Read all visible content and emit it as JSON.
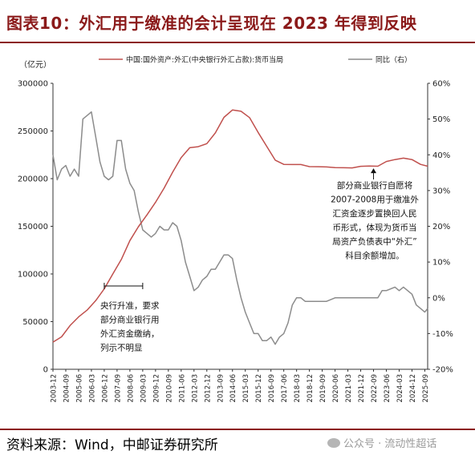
{
  "title": "图表10：外汇用于缴准的会计呈现在 2023 年得到反映",
  "source": "资料来源：Wind，中邮证券研究所",
  "watermark": "公众号 · 流动性超话",
  "chart_data": {
    "type": "line",
    "left_unit": "（亿元）",
    "legend": [
      "中国:国外资产:外汇(中央银行外汇占款):货币当局",
      "同比（右）"
    ],
    "legend_placement": "top",
    "colors": {
      "series1": "#c0504d",
      "series2": "#8c8c8c"
    },
    "x_tick_labels": [
      "2003-12",
      "2004-09",
      "2005-06",
      "2006-03",
      "2006-12",
      "2007-09",
      "2008-06",
      "2009-03",
      "2009-12",
      "2010-09",
      "2011-06",
      "2012-03",
      "2012-12",
      "2013-09",
      "2014-06",
      "2015-03",
      "2015-12",
      "2016-09",
      "2017-06",
      "2018-03",
      "2018-12",
      "2019-09",
      "2020-06",
      "2021-03",
      "2021-12",
      "2022-09",
      "2023-06",
      "2024-03",
      "2024-12",
      "2025-09"
    ],
    "x_range": [
      "2003-12",
      "2025-11"
    ],
    "ylim_left": [
      0,
      300000
    ],
    "y_left_ticks": [
      "0",
      "50000",
      "100000",
      "150000",
      "200000",
      "250000",
      "300000"
    ],
    "ylim_right": [
      -20,
      60
    ],
    "y_right_ticks": [
      "-20%",
      "-10%",
      "0%",
      "10%",
      "20%",
      "30%",
      "40%",
      "50%",
      "60%"
    ],
    "series": [
      {
        "name": "中国:国外资产:外汇(中央银行外汇占款):货币当局",
        "axis": "left",
        "points": [
          [
            "2003-12",
            28500
          ],
          [
            "2004-06",
            34000
          ],
          [
            "2004-12",
            45900
          ],
          [
            "2005-06",
            55000
          ],
          [
            "2005-12",
            62100
          ],
          [
            "2006-06",
            72000
          ],
          [
            "2006-12",
            84400
          ],
          [
            "2007-06",
            100000
          ],
          [
            "2007-12",
            115200
          ],
          [
            "2008-06",
            135000
          ],
          [
            "2008-12",
            149600
          ],
          [
            "2009-06",
            162000
          ],
          [
            "2009-12",
            175100
          ],
          [
            "2010-06",
            190000
          ],
          [
            "2010-12",
            206800
          ],
          [
            "2011-06",
            222000
          ],
          [
            "2011-12",
            232400
          ],
          [
            "2012-06",
            233500
          ],
          [
            "2012-12",
            236700
          ],
          [
            "2013-06",
            248000
          ],
          [
            "2013-12",
            264300
          ],
          [
            "2014-06",
            272000
          ],
          [
            "2014-12",
            270700
          ],
          [
            "2015-06",
            264000
          ],
          [
            "2015-12",
            248500
          ],
          [
            "2016-06",
            234000
          ],
          [
            "2016-12",
            219400
          ],
          [
            "2017-06",
            215000
          ],
          [
            "2017-12",
            214800
          ],
          [
            "2018-06",
            214800
          ],
          [
            "2018-12",
            212600
          ],
          [
            "2019-06",
            212500
          ],
          [
            "2019-12",
            212300
          ],
          [
            "2020-06",
            211500
          ],
          [
            "2020-12",
            211400
          ],
          [
            "2021-06",
            211300
          ],
          [
            "2021-12",
            212900
          ],
          [
            "2022-06",
            213200
          ],
          [
            "2022-12",
            213000
          ],
          [
            "2023-06",
            218000
          ],
          [
            "2023-12",
            220000
          ],
          [
            "2024-06",
            221500
          ],
          [
            "2024-12",
            220000
          ],
          [
            "2025-06",
            215000
          ],
          [
            "2025-11",
            213000
          ]
        ]
      },
      {
        "name": "同比（右）",
        "axis": "right",
        "points": [
          [
            "2003-12",
            40
          ],
          [
            "2004-03",
            33
          ],
          [
            "2004-06",
            36
          ],
          [
            "2004-09",
            37
          ],
          [
            "2004-12",
            34
          ],
          [
            "2005-03",
            36
          ],
          [
            "2005-06",
            34
          ],
          [
            "2005-09",
            50
          ],
          [
            "2005-12",
            51
          ],
          [
            "2006-03",
            52
          ],
          [
            "2006-06",
            45
          ],
          [
            "2006-09",
            38
          ],
          [
            "2006-12",
            34
          ],
          [
            "2007-03",
            33
          ],
          [
            "2007-06",
            34
          ],
          [
            "2007-09",
            44
          ],
          [
            "2007-12",
            44
          ],
          [
            "2008-03",
            36
          ],
          [
            "2008-06",
            32
          ],
          [
            "2008-09",
            30
          ],
          [
            "2008-12",
            24
          ],
          [
            "2009-03",
            19
          ],
          [
            "2009-06",
            18
          ],
          [
            "2009-09",
            17
          ],
          [
            "2009-12",
            18
          ],
          [
            "2010-03",
            20
          ],
          [
            "2010-06",
            19
          ],
          [
            "2010-09",
            19
          ],
          [
            "2010-12",
            21
          ],
          [
            "2011-03",
            20
          ],
          [
            "2011-06",
            16
          ],
          [
            "2011-09",
            10
          ],
          [
            "2011-12",
            6
          ],
          [
            "2012-03",
            2
          ],
          [
            "2012-06",
            3
          ],
          [
            "2012-09",
            5
          ],
          [
            "2012-12",
            6
          ],
          [
            "2013-03",
            8
          ],
          [
            "2013-06",
            8
          ],
          [
            "2013-09",
            10
          ],
          [
            "2013-12",
            12
          ],
          [
            "2014-03",
            12
          ],
          [
            "2014-06",
            11
          ],
          [
            "2014-09",
            5
          ],
          [
            "2014-12",
            0
          ],
          [
            "2015-03",
            -4
          ],
          [
            "2015-06",
            -7
          ],
          [
            "2015-09",
            -10
          ],
          [
            "2015-12",
            -10
          ],
          [
            "2016-03",
            -12
          ],
          [
            "2016-06",
            -12
          ],
          [
            "2016-09",
            -11
          ],
          [
            "2016-12",
            -13
          ],
          [
            "2017-03",
            -11
          ],
          [
            "2017-06",
            -10
          ],
          [
            "2017-09",
            -7
          ],
          [
            "2017-12",
            -2
          ],
          [
            "2018-03",
            0
          ],
          [
            "2018-06",
            0
          ],
          [
            "2018-09",
            -1
          ],
          [
            "2018-12",
            -1
          ],
          [
            "2019-06",
            -1
          ],
          [
            "2019-12",
            -1
          ],
          [
            "2020-06",
            0
          ],
          [
            "2020-12",
            0
          ],
          [
            "2021-06",
            0
          ],
          [
            "2021-12",
            0
          ],
          [
            "2022-06",
            0
          ],
          [
            "2022-12",
            0
          ],
          [
            "2023-03",
            2
          ],
          [
            "2023-06",
            2
          ],
          [
            "2023-12",
            3
          ],
          [
            "2024-03",
            2
          ],
          [
            "2024-06",
            3
          ],
          [
            "2024-09",
            2
          ],
          [
            "2024-12",
            1
          ],
          [
            "2025-03",
            -2
          ],
          [
            "2025-06",
            -3
          ],
          [
            "2025-09",
            -4
          ],
          [
            "2025-11",
            -3
          ]
        ]
      }
    ],
    "annotations": [
      {
        "lines": [
          "部分商业银行自愿将",
          "2007-2008用于缴准外",
          "汇资金逐步置换回人民",
          "币形式，体现为货币当",
          "局资产负债表中“外汇”",
          "科目余额增加。"
        ],
        "arrow_to": [
          "2022-09",
          212500
        ]
      },
      {
        "lines": [
          "央行升准，要求",
          "部分商业银行用",
          "外汇资金缴纳，",
          "列示不明显"
        ],
        "bracket": [
          "2006-12",
          "2009-03"
        ]
      }
    ]
  }
}
